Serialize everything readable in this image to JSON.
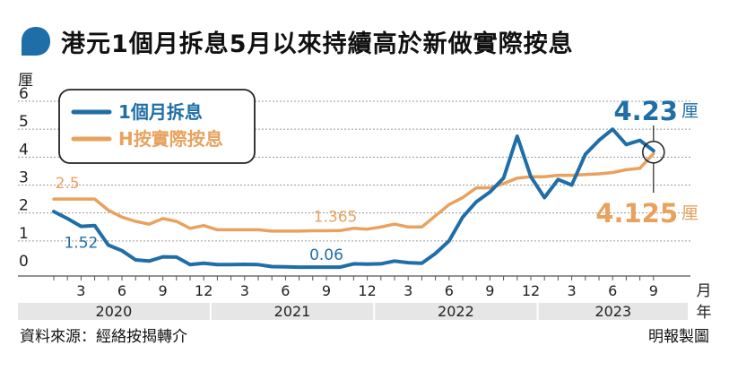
{
  "title": "港元1個月拆息5月以來持續高於新做實際按息",
  "source": "資料來源：經絡按揭轉介",
  "credit": "明報製圖",
  "colors": {
    "hibor": "#1f6ea8",
    "mortgage": "#e8a25e",
    "bubble": "#1f6ea8",
    "grid": "#9a9a9a",
    "axis_band": "#e6e6e6"
  },
  "chart_data": {
    "type": "line",
    "title": "港元1個月拆息5月以來持續高於新做實際按息",
    "ylabel": "厘",
    "xlabel": "月",
    "x_unit_bottom": "年",
    "ylim": [
      0,
      6
    ],
    "yticks": [
      0,
      1,
      2,
      3,
      4,
      5,
      6
    ],
    "grid": true,
    "legend_position": "top-left",
    "month_tick_labels": [
      "3",
      "6",
      "9",
      "12",
      "3",
      "6",
      "9",
      "12",
      "3",
      "6",
      "9",
      "12",
      "3",
      "6",
      "9"
    ],
    "year_labels": [
      "2020",
      "2021",
      "2022",
      "2023"
    ],
    "x": [
      "2020-01",
      "2020-02",
      "2020-03",
      "2020-04",
      "2020-05",
      "2020-06",
      "2020-07",
      "2020-08",
      "2020-09",
      "2020-10",
      "2020-11",
      "2020-12",
      "2021-01",
      "2021-02",
      "2021-03",
      "2021-04",
      "2021-05",
      "2021-06",
      "2021-07",
      "2021-08",
      "2021-09",
      "2021-10",
      "2021-11",
      "2021-12",
      "2022-01",
      "2022-02",
      "2022-03",
      "2022-04",
      "2022-05",
      "2022-06",
      "2022-07",
      "2022-08",
      "2022-09",
      "2022-10",
      "2022-11",
      "2022-12",
      "2023-01",
      "2023-02",
      "2023-03",
      "2023-04",
      "2023-05",
      "2023-06",
      "2023-07",
      "2023-08",
      "2023-09"
    ],
    "series": [
      {
        "name": "1個月拆息",
        "color": "#1f6ea8",
        "values": [
          2.05,
          1.8,
          1.52,
          1.55,
          0.85,
          0.65,
          0.32,
          0.28,
          0.43,
          0.42,
          0.15,
          0.2,
          0.15,
          0.15,
          0.16,
          0.15,
          0.08,
          0.07,
          0.06,
          0.06,
          0.06,
          0.06,
          0.18,
          0.17,
          0.18,
          0.28,
          0.22,
          0.2,
          0.55,
          1.0,
          1.85,
          2.4,
          2.75,
          3.25,
          4.75,
          3.3,
          2.55,
          3.2,
          3.0,
          4.1,
          4.6,
          5.0,
          4.45,
          4.6,
          4.23
        ],
        "end_label": "4.23",
        "annotations": [
          {
            "index": 2,
            "text": "1.52"
          },
          {
            "index": 20,
            "text": "0.06"
          }
        ]
      },
      {
        "name": "H按實際按息",
        "color": "#e8a25e",
        "values": [
          2.5,
          2.5,
          2.5,
          2.5,
          2.1,
          1.85,
          1.7,
          1.6,
          1.8,
          1.7,
          1.45,
          1.55,
          1.4,
          1.4,
          1.4,
          1.4,
          1.35,
          1.35,
          1.35,
          1.365,
          1.365,
          1.37,
          1.45,
          1.42,
          1.5,
          1.6,
          1.5,
          1.5,
          1.9,
          2.3,
          2.55,
          2.9,
          2.9,
          3.05,
          3.25,
          3.3,
          3.3,
          3.35,
          3.35,
          3.38,
          3.4,
          3.45,
          3.55,
          3.6,
          4.125
        ],
        "end_label": "4.125",
        "annotations": [
          {
            "index": 1,
            "text": "2.5"
          },
          {
            "index": 20,
            "text": "1.365"
          }
        ]
      }
    ],
    "end_unit": "厘"
  }
}
